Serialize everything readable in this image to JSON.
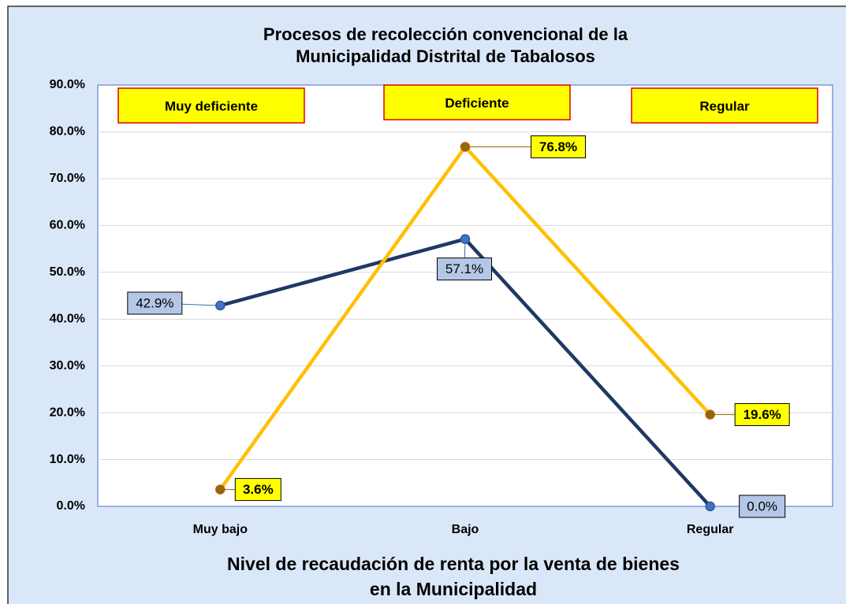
{
  "chart_data": {
    "type": "line",
    "title": [
      "Procesos de recolección convencional de la",
      "Municipalidad Distrital de Tabalosos"
    ],
    "x_label": [
      "Nivel de recaudación de renta por la venta de bienes",
      "en la Municipalidad"
    ],
    "categories": [
      "Muy bajo",
      "Bajo",
      "Regular"
    ],
    "series": [
      {
        "color": "#1f3864",
        "label_fill": "#b4c7e7",
        "values": [
          42.9,
          57.1,
          0.0
        ],
        "value_labels": [
          "42.9%",
          "57.1%",
          "0.0%"
        ]
      },
      {
        "color": "#ffc000",
        "label_fill": "#ffff00",
        "values": [
          3.6,
          76.8,
          19.6
        ],
        "value_labels": [
          "3.6%",
          "76.8%",
          "19.6%"
        ]
      }
    ],
    "annotations": [
      "Muy deficiente",
      "Deficiente",
      "Regular"
    ],
    "ylim": [
      0,
      90
    ],
    "yticks": [
      {
        "value": 0,
        "label": "0.0%"
      },
      {
        "value": 10,
        "label": "10.0%"
      },
      {
        "value": 20,
        "label": "20.0%"
      },
      {
        "value": 30,
        "label": "30.0%"
      },
      {
        "value": 40,
        "label": "40.0%"
      },
      {
        "value": 50,
        "label": "50.0%"
      },
      {
        "value": 60,
        "label": "60.0%"
      },
      {
        "value": 70,
        "label": "70.0%"
      },
      {
        "value": 80,
        "label": "80.0%"
      },
      {
        "value": 90,
        "label": "90.0%"
      }
    ],
    "grid": true
  }
}
